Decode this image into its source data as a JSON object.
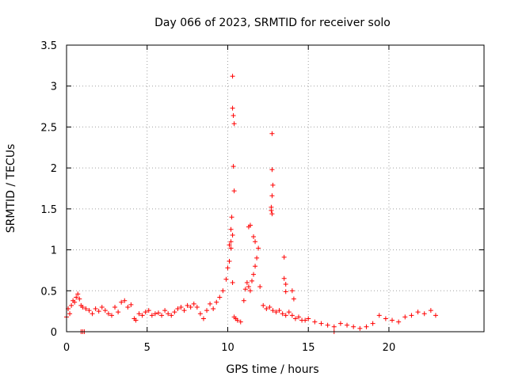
{
  "chart_data": {
    "type": "scatter",
    "title": "Day 066 of 2023, SRMTID for receiver solo",
    "xlabel": "GPS time / hours",
    "ylabel": "SRMTID / TECUs",
    "xlim": [
      0,
      25.9
    ],
    "ylim": [
      0,
      3.5
    ],
    "xticks": [
      0,
      5,
      10,
      15,
      20
    ],
    "xtick_labels": [
      "0",
      "5",
      "10",
      "15",
      "20"
    ],
    "yticks": [
      0,
      0.5,
      1,
      1.5,
      2,
      2.5,
      3,
      3.5
    ],
    "ytick_labels": [
      "0",
      "0.5",
      "1",
      "1.5",
      "2",
      "2.5",
      "3",
      "3.5"
    ],
    "grid": true,
    "marker": "+",
    "color": "#ff0000",
    "series": [
      {
        "name": "SRMTID",
        "x": [
          0.0,
          0.1,
          0.2,
          0.3,
          0.4,
          0.5,
          0.6,
          0.7,
          0.8,
          0.9,
          1.0,
          1.2,
          1.4,
          1.6,
          1.8,
          2.0,
          2.2,
          2.4,
          2.6,
          2.8,
          3.0,
          3.2,
          3.4,
          3.6,
          3.8,
          4.0,
          4.2,
          4.3,
          4.5,
          4.7,
          4.9,
          5.1,
          5.3,
          5.5,
          5.7,
          5.9,
          6.1,
          6.3,
          6.5,
          6.7,
          6.9,
          7.1,
          7.3,
          7.5,
          7.7,
          7.9,
          8.1,
          8.3,
          8.5,
          8.7,
          8.9,
          9.1,
          9.3,
          9.5,
          9.7,
          9.9,
          10.0,
          10.1,
          10.2,
          10.3,
          10.4,
          10.5,
          10.6,
          10.8,
          11.0,
          11.1,
          11.2,
          11.3,
          11.4,
          11.5,
          11.6,
          11.7,
          11.8,
          11.9,
          12.0,
          12.2,
          12.4,
          12.6,
          12.8,
          13.0,
          13.2,
          13.4,
          13.6,
          13.8,
          14.0,
          14.2,
          14.4,
          14.6,
          14.8,
          15.0,
          15.4,
          15.8,
          16.2,
          16.6,
          17.0,
          17.4,
          17.8,
          18.2,
          18.6,
          19.0,
          19.4,
          19.8,
          20.2,
          20.6,
          21.0,
          21.4,
          21.8,
          22.2,
          22.6,
          22.9,
          0.9,
          1.0,
          1.1,
          10.2,
          10.25,
          10.3,
          10.3,
          10.35,
          10.4,
          10.35,
          10.4,
          10.1,
          10.2,
          10.3,
          11.3,
          11.4,
          11.6,
          11.7,
          12.75,
          12.75,
          12.8,
          12.75,
          12.7,
          12.75,
          12.7,
          13.5,
          13.5,
          13.6,
          13.6,
          14.0,
          14.1,
          16.6
        ],
        "y": [
          0.18,
          0.28,
          0.22,
          0.32,
          0.38,
          0.36,
          0.42,
          0.46,
          0.4,
          0.32,
          0.3,
          0.28,
          0.26,
          0.22,
          0.28,
          0.25,
          0.3,
          0.26,
          0.22,
          0.2,
          0.3,
          0.24,
          0.36,
          0.38,
          0.3,
          0.33,
          0.16,
          0.14,
          0.22,
          0.2,
          0.24,
          0.26,
          0.2,
          0.22,
          0.23,
          0.2,
          0.26,
          0.22,
          0.2,
          0.24,
          0.28,
          0.3,
          0.26,
          0.32,
          0.3,
          0.34,
          0.3,
          0.22,
          0.16,
          0.26,
          0.34,
          0.28,
          0.36,
          0.42,
          0.5,
          0.64,
          0.78,
          0.86,
          1.02,
          0.6,
          0.18,
          0.16,
          0.14,
          0.12,
          0.38,
          0.52,
          0.6,
          0.55,
          0.5,
          0.62,
          0.7,
          0.8,
          0.9,
          1.02,
          0.55,
          0.32,
          0.28,
          0.3,
          0.26,
          0.24,
          0.26,
          0.22,
          0.2,
          0.24,
          0.2,
          0.16,
          0.18,
          0.14,
          0.14,
          0.16,
          0.12,
          0.1,
          0.08,
          0.06,
          0.1,
          0.08,
          0.06,
          0.04,
          0.06,
          0.1,
          0.2,
          0.16,
          0.14,
          0.12,
          0.18,
          0.2,
          0.24,
          0.22,
          0.26,
          0.2,
          0.0,
          0.0,
          0.0,
          1.25,
          1.4,
          3.12,
          2.73,
          2.64,
          2.54,
          2.02,
          1.72,
          1.06,
          1.1,
          1.18,
          1.28,
          1.3,
          1.16,
          1.1,
          2.42,
          1.98,
          1.79,
          1.66,
          1.52,
          1.44,
          1.48,
          0.91,
          0.65,
          0.58,
          0.49,
          0.5,
          0.4,
          0.0
        ]
      }
    ]
  }
}
